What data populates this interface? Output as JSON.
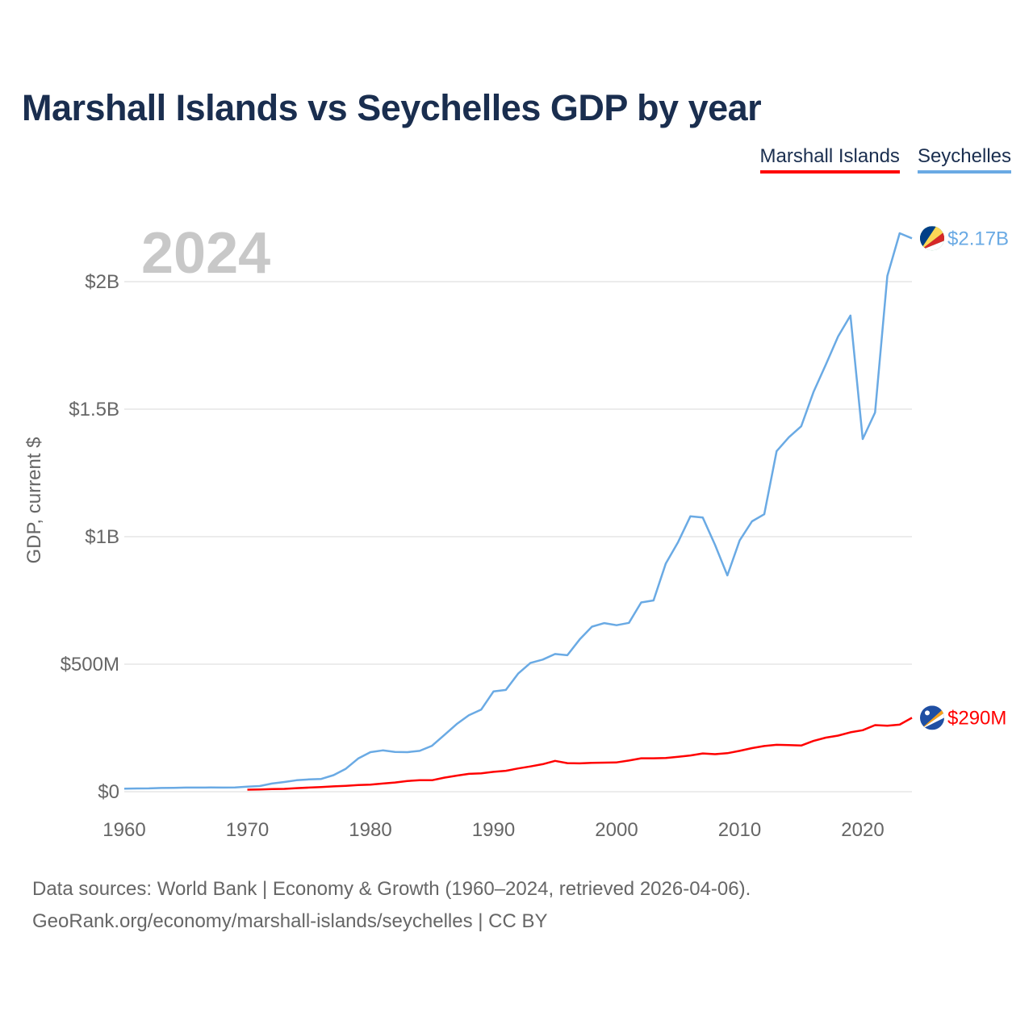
{
  "title": "Marshall Islands vs Seychelles GDP by year",
  "legend": {
    "marshall": "Marshall Islands",
    "seychelles": "Seychelles"
  },
  "year_label": "2024",
  "source": {
    "line1": "Data sources: World Bank | Economy & Growth (1960–2024, retrieved 2026-04-06).",
    "line2": "GeoRank.org/economy/marshall-islands/seychelles | CC BY"
  },
  "colors": {
    "marshall": "#ff0000",
    "seychelles": "#6aaae4",
    "grid": "#e6e6e6",
    "axis_text": "#666666",
    "title": "#1a2e4f",
    "year": "#c8c8c8"
  },
  "chart_data": {
    "type": "line",
    "title": "Marshall Islands vs Seychelles GDP by year",
    "xlabel": "",
    "ylabel": "GDP, current $",
    "xlim": [
      1960,
      2024
    ],
    "ylim": [
      0,
      2200000000
    ],
    "x_ticks": [
      1960,
      1970,
      1980,
      1990,
      2000,
      2010,
      2020
    ],
    "x_tick_labels": [
      "1960",
      "1970",
      "1980",
      "1990",
      "2000",
      "2010",
      "2020"
    ],
    "y_ticks": [
      0,
      500000000,
      1000000000,
      1500000000,
      2000000000
    ],
    "y_tick_labels": [
      "$0",
      "$500M",
      "$1B",
      "$1.5B",
      "$2B"
    ],
    "series": [
      {
        "name": "Seychelles",
        "color": "#6aaae4",
        "end_label": "$2.17B",
        "flag": "seychelles-flag-icon",
        "x": [
          1960,
          1961,
          1962,
          1963,
          1964,
          1965,
          1966,
          1967,
          1968,
          1969,
          1970,
          1971,
          1972,
          1973,
          1974,
          1975,
          1976,
          1977,
          1978,
          1979,
          1980,
          1981,
          1982,
          1983,
          1984,
          1985,
          1986,
          1987,
          1988,
          1989,
          1990,
          1991,
          1992,
          1993,
          1994,
          1995,
          1996,
          1997,
          1998,
          1999,
          2000,
          2001,
          2002,
          2003,
          2004,
          2005,
          2006,
          2007,
          2008,
          2009,
          2010,
          2011,
          2012,
          2013,
          2014,
          2015,
          2016,
          2017,
          2018,
          2019,
          2020,
          2021,
          2022,
          2023,
          2024
        ],
        "values": [
          12000000,
          12500000,
          13000000,
          14500000,
          15000000,
          16000000,
          16200000,
          16300000,
          16000000,
          16500000,
          20000000,
          22000000,
          32000000,
          38000000,
          45000000,
          48000000,
          50000000,
          65000000,
          90000000,
          130000000,
          155000000,
          162000000,
          156000000,
          155000000,
          160000000,
          180000000,
          222000000,
          265000000,
          300000000,
          322000000,
          393000000,
          399000000,
          463000000,
          505000000,
          518000000,
          540000000,
          535000000,
          597000000,
          647000000,
          661000000,
          653000000,
          662000000,
          742000000,
          750000000,
          895000000,
          979000000,
          1080000000,
          1075000000,
          968000000,
          848000000,
          985000000,
          1060000000,
          1088000000,
          1335000000,
          1390000000,
          1433000000,
          1567000000,
          1675000000,
          1785000000,
          1867000000,
          1383000000,
          1487000000,
          2022000000,
          2190000000,
          2170000000
        ]
      },
      {
        "name": "Marshall Islands",
        "color": "#ff0000",
        "end_label": "$290M",
        "flag": "marshall-islands-flag-icon",
        "x": [
          1970,
          1971,
          1972,
          1973,
          1974,
          1975,
          1976,
          1977,
          1978,
          1979,
          1980,
          1981,
          1982,
          1983,
          1984,
          1985,
          1986,
          1987,
          1988,
          1989,
          1990,
          1991,
          1992,
          1993,
          1994,
          1995,
          1996,
          1997,
          1998,
          1999,
          2000,
          2001,
          2002,
          2003,
          2004,
          2005,
          2006,
          2007,
          2008,
          2009,
          2010,
          2011,
          2012,
          2013,
          2014,
          2015,
          2016,
          2017,
          2018,
          2019,
          2020,
          2021,
          2022,
          2023,
          2024
        ],
        "values": [
          8000000,
          9000000,
          10000000,
          11000000,
          14000000,
          16000000,
          18000000,
          21000000,
          23000000,
          26000000,
          28000000,
          32000000,
          36000000,
          42000000,
          45000000,
          45000000,
          55000000,
          63000000,
          70000000,
          72000000,
          78000000,
          82000000,
          91000000,
          99000000,
          108000000,
          121000000,
          112000000,
          111000000,
          113000000,
          114000000,
          115000000,
          122000000,
          131000000,
          131000000,
          132000000,
          137000000,
          142000000,
          150000000,
          147000000,
          151000000,
          160000000,
          171000000,
          179000000,
          184000000,
          183000000,
          181000000,
          199000000,
          212000000,
          220000000,
          233000000,
          241000000,
          261000000,
          259000000,
          263000000,
          290000000
        ]
      }
    ]
  }
}
